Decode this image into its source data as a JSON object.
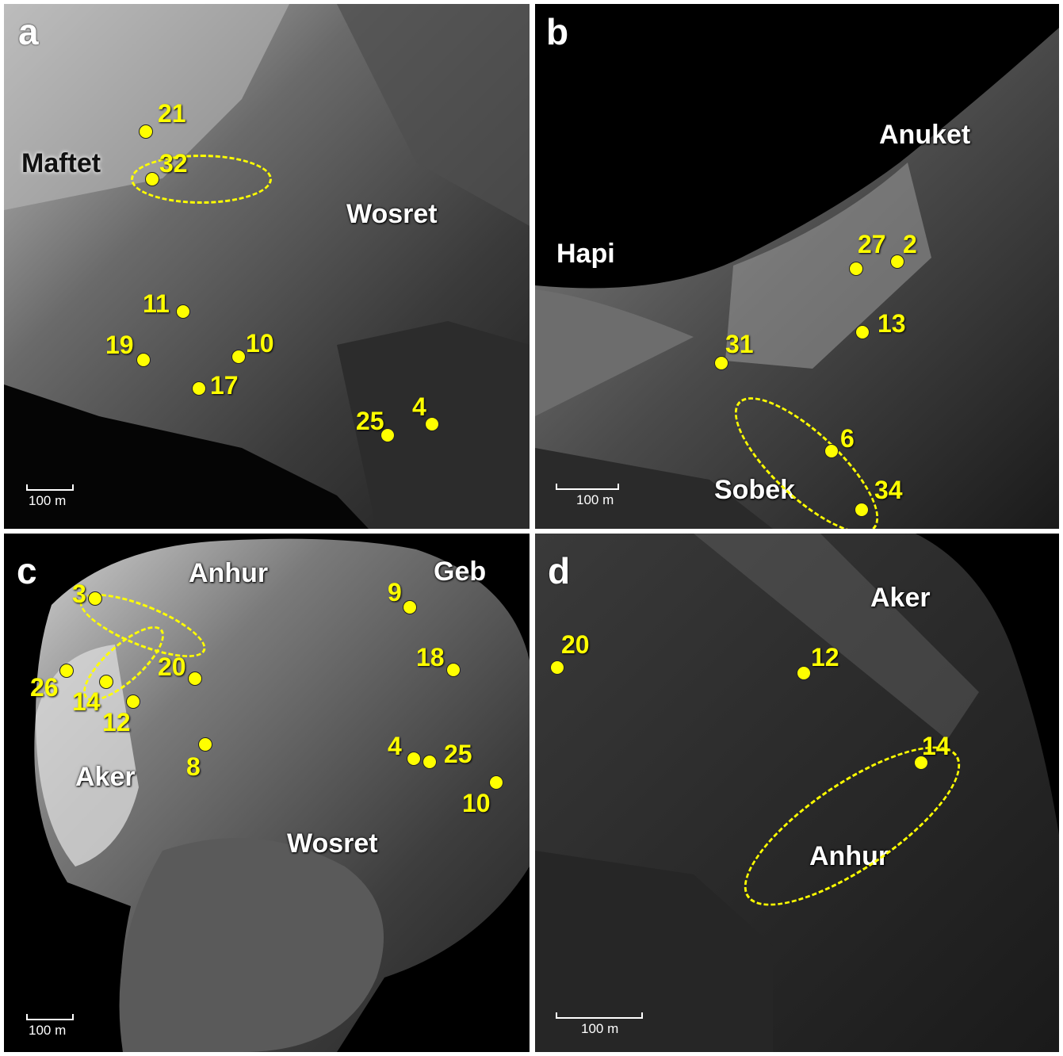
{
  "panels": {
    "a": {
      "letter": "a",
      "regions": {
        "maftet": "Maftet",
        "wosret": "Wosret"
      },
      "sites": {
        "s21": "21",
        "s32": "32",
        "s11": "11",
        "s19": "19",
        "s10": "10",
        "s17": "17",
        "s25": "25",
        "s4": "4"
      },
      "scale": "100 m"
    },
    "b": {
      "letter": "b",
      "regions": {
        "anuket": "Anuket",
        "hapi": "Hapi",
        "sobek": "Sobek"
      },
      "sites": {
        "s27": "27",
        "s2": "2",
        "s13": "13",
        "s31": "31",
        "s6": "6",
        "s34": "34"
      },
      "scale": "100 m"
    },
    "c": {
      "letter": "c",
      "regions": {
        "anhur": "Anhur",
        "geb": "Geb",
        "aker": "Aker",
        "wosret": "Wosret"
      },
      "sites": {
        "s3": "3",
        "s9": "9",
        "s26": "26",
        "s14": "14",
        "s12": "12",
        "s20": "20",
        "s18": "18",
        "s8": "8",
        "s4": "4",
        "s25": "25",
        "s10": "10"
      },
      "scale": "100 m"
    },
    "d": {
      "letter": "d",
      "regions": {
        "aker": "Aker",
        "anhur": "Anhur"
      },
      "sites": {
        "s20": "20",
        "s12": "12",
        "s14": "14"
      },
      "scale": "100 m"
    }
  },
  "colors": {
    "marker": "#ffff00",
    "label_region": "#ffffff",
    "background": "#000000"
  }
}
